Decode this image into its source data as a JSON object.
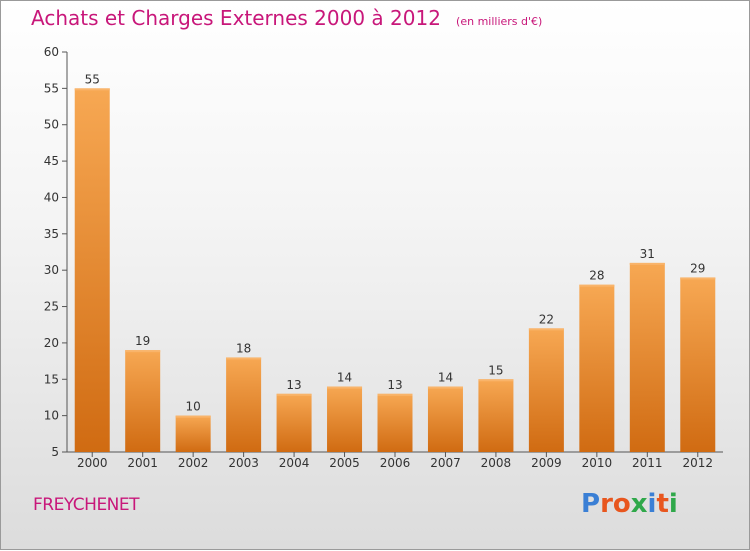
{
  "header": {
    "title": "Achats et Charges Externes 2000 à 2012",
    "subtitle": "(en milliers d'€)"
  },
  "footer": {
    "place": "FREYCHENET",
    "logo": "Proxiti"
  },
  "colors": {
    "title": "#c8177a",
    "bar_light": "#f7a853",
    "bar_dark": "#d06b12",
    "logo": [
      "#3a7fd5",
      "#e8561e",
      "#e8561e",
      "#2fa84a",
      "#3a7fd5",
      "#e8561e",
      "#2fa84a"
    ]
  },
  "chart_data": {
    "type": "bar",
    "title": "Achats et Charges Externes 2000 à 2012",
    "subtitle": "(en milliers d'€)",
    "xlabel": "",
    "ylabel": "",
    "categories": [
      "2000",
      "2001",
      "2002",
      "2003",
      "2004",
      "2005",
      "2006",
      "2007",
      "2008",
      "2009",
      "2010",
      "2011",
      "2012"
    ],
    "values": [
      55,
      19,
      10,
      18,
      13,
      14,
      13,
      14,
      15,
      22,
      28,
      31,
      29
    ],
    "ylim": [
      5,
      60
    ],
    "yticks": [
      5,
      10,
      15,
      20,
      25,
      30,
      35,
      40,
      45,
      50,
      55,
      60
    ],
    "grid": false,
    "data_labels": true
  }
}
